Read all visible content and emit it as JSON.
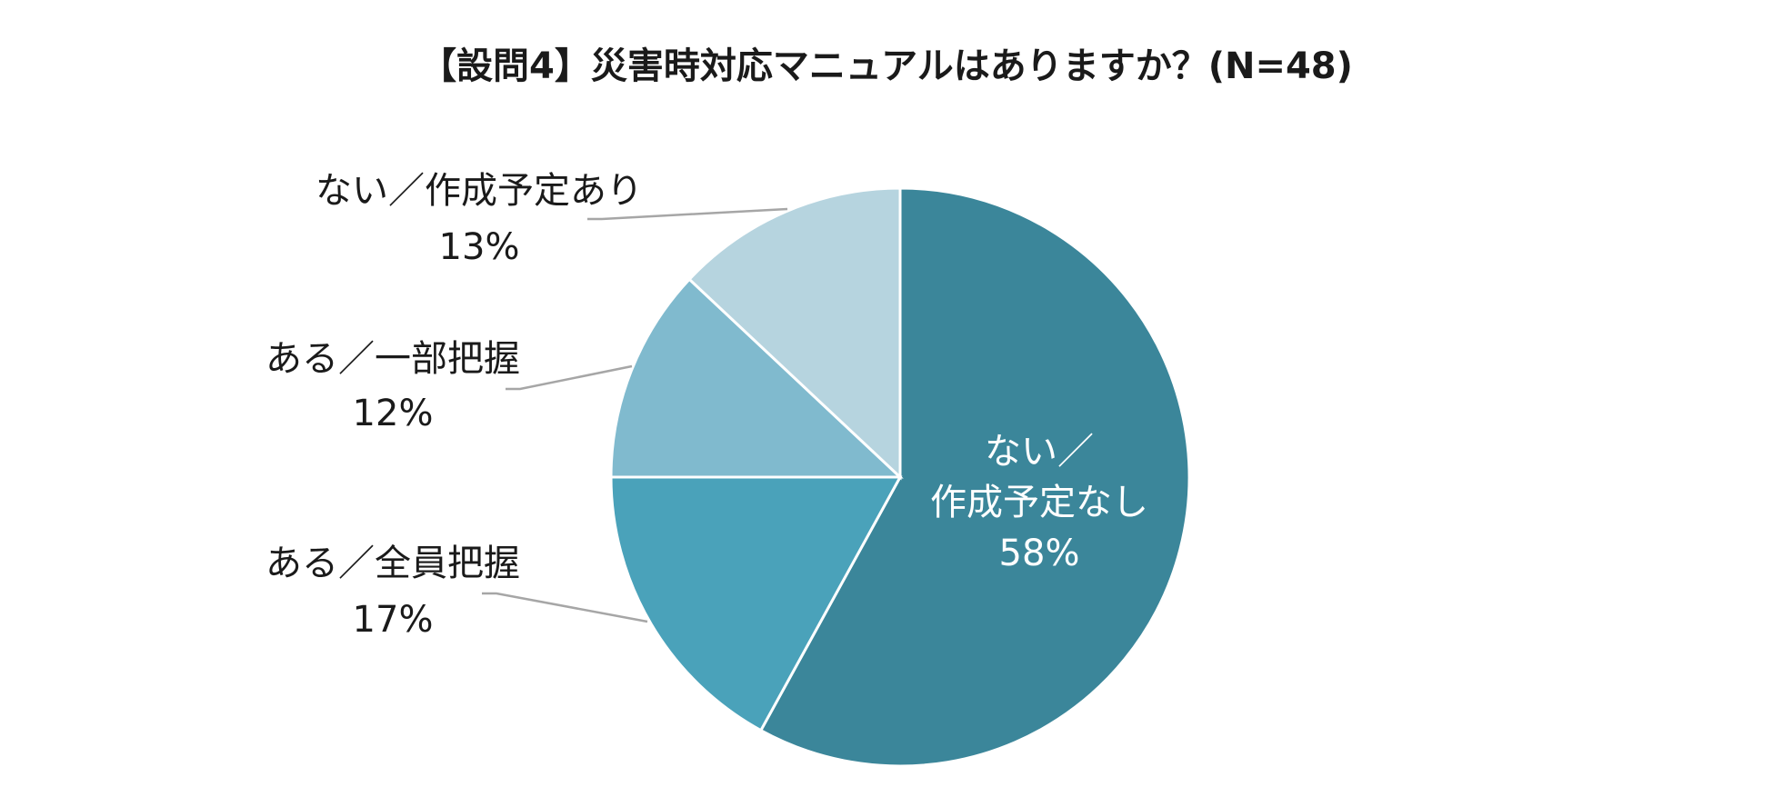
{
  "chart_data": {
    "type": "pie",
    "title": "【設問4】災害時対応マニュアルはありますか？(N=48)",
    "slices": [
      {
        "label_lines": [
          "ない／",
          "作成予定なし"
        ],
        "value": 58,
        "value_label": "58%",
        "color": "#3b869a",
        "label_position": "inside"
      },
      {
        "label_lines": [
          "ある／全員把握"
        ],
        "value": 17,
        "value_label": "17%",
        "color": "#4aa2ba",
        "label_position": "outside"
      },
      {
        "label_lines": [
          "ある／一部把握"
        ],
        "value": 12,
        "value_label": "12%",
        "color": "#80bace",
        "label_position": "outside"
      },
      {
        "label_lines": [
          "ない／作成予定あり"
        ],
        "value": 13,
        "value_label": "13%",
        "color": "#b6d4df",
        "label_position": "outside"
      }
    ],
    "start_angle": "12 o'clock",
    "direction": "clockwise"
  }
}
